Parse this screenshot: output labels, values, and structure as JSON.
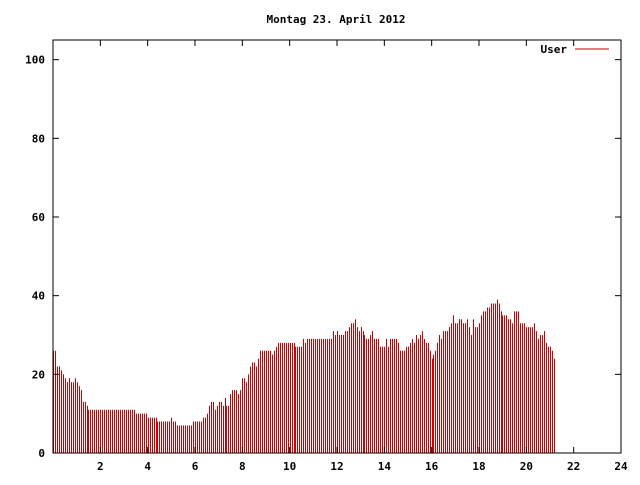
{
  "chart_data": {
    "type": "bar",
    "title": "Montag 23. April 2012",
    "xlabel": "",
    "ylabel": "",
    "xlim": [
      0,
      24
    ],
    "ylim": [
      0,
      105
    ],
    "x_ticks": [
      {
        "v": 2,
        "label": "2"
      },
      {
        "v": 4,
        "label": "4"
      },
      {
        "v": 6,
        "label": "6"
      },
      {
        "v": 8,
        "label": "8"
      },
      {
        "v": 10,
        "label": "10"
      },
      {
        "v": 12,
        "label": "12"
      },
      {
        "v": 14,
        "label": "14"
      },
      {
        "v": 16,
        "label": "16"
      },
      {
        "v": 18,
        "label": "18"
      },
      {
        "v": 20,
        "label": "20"
      },
      {
        "v": 22,
        "label": "22"
      },
      {
        "v": 24,
        "label": "24"
      }
    ],
    "y_ticks": [
      {
        "v": 0,
        "label": "0"
      },
      {
        "v": 20,
        "label": "20"
      },
      {
        "v": 40,
        "label": "40"
      },
      {
        "v": 60,
        "label": "60"
      },
      {
        "v": 80,
        "label": "80"
      },
      {
        "v": 100,
        "label": "100"
      }
    ],
    "grid": false,
    "legend": {
      "position": "top-right"
    },
    "series": [
      {
        "name": "User",
        "color": "#cc0000",
        "x_start": 0,
        "x_step": 0.0833,
        "values": [
          26,
          26,
          22,
          22,
          21,
          20,
          19,
          18,
          19,
          18,
          18,
          19,
          18,
          17,
          16,
          13,
          13,
          12,
          11,
          11,
          11,
          11,
          11,
          11,
          11,
          11,
          11,
          11,
          11,
          11,
          11,
          11,
          11,
          11,
          11,
          11,
          11,
          11,
          11,
          11,
          11,
          11,
          10,
          10,
          10,
          10,
          10,
          10,
          9,
          9,
          9,
          9,
          9,
          8,
          8,
          8,
          8,
          8,
          8,
          8,
          9,
          8,
          8,
          7,
          7,
          7,
          7,
          7,
          7,
          7,
          7,
          8,
          8,
          8,
          8,
          8,
          9,
          9,
          10,
          12,
          13,
          13,
          11,
          12,
          13,
          13,
          12,
          14,
          12,
          12,
          15,
          16,
          16,
          16,
          15,
          16,
          19,
          19,
          18,
          20,
          22,
          23,
          23,
          22,
          24,
          26,
          26,
          26,
          26,
          26,
          26,
          25,
          26,
          27,
          28,
          28,
          28,
          28,
          28,
          28,
          28,
          28,
          28,
          27,
          27,
          27,
          27,
          29,
          28,
          29,
          29,
          29,
          29,
          29,
          29,
          29,
          29,
          29,
          29,
          29,
          29,
          29,
          31,
          30,
          31,
          30,
          30,
          30,
          31,
          31,
          32,
          33,
          33,
          34,
          32,
          31,
          32,
          31,
          30,
          29,
          29,
          30,
          31,
          29,
          29,
          29,
          27,
          27,
          27,
          29,
          27,
          29,
          29,
          29,
          29,
          28,
          26,
          26,
          26,
          27,
          27,
          28,
          29,
          28,
          30,
          29,
          30,
          31,
          29,
          28,
          28,
          26,
          24,
          25,
          26,
          28,
          30,
          29,
          31,
          31,
          31,
          32,
          33,
          35,
          33,
          33,
          34,
          34,
          33,
          33,
          34,
          32,
          30,
          34,
          32,
          32,
          33,
          35,
          36,
          36,
          37,
          37,
          38,
          38,
          38,
          39,
          38,
          36,
          35,
          35,
          35,
          34,
          34,
          33,
          36,
          36,
          36,
          33,
          33,
          33,
          32,
          32,
          32,
          32,
          33,
          31,
          29,
          30,
          30,
          31,
          28,
          27,
          27,
          26,
          24
        ]
      }
    ]
  }
}
